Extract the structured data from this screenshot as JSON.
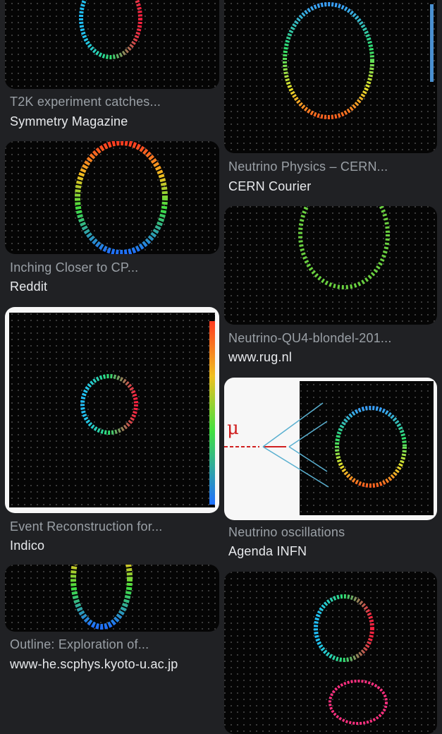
{
  "results": [
    {
      "caption": "T2K experiment catches...",
      "source": "Symmetry Magazine"
    },
    {
      "caption": "Inching Closer to CP...",
      "source": "Reddit"
    },
    {
      "caption": "Event Reconstruction for...",
      "source": "Indico"
    },
    {
      "caption": "Outline: Exploration of...",
      "source": "www-he.scphys.kyoto-u.ac.jp"
    },
    {
      "caption": "Neutrino Physics – CERN...",
      "source": "CERN Courier"
    },
    {
      "caption": "Neutrino-QU4-blondel-201...",
      "source": "www.rug.nl"
    },
    {
      "caption": "Neutrino oscillations",
      "source": "Agenda INFN",
      "diagram_label": "μ"
    },
    {
      "caption": "",
      "source": ""
    }
  ],
  "colors": {
    "background": "#202124",
    "caption": "#9aa0a6",
    "source": "#e8eaed"
  }
}
